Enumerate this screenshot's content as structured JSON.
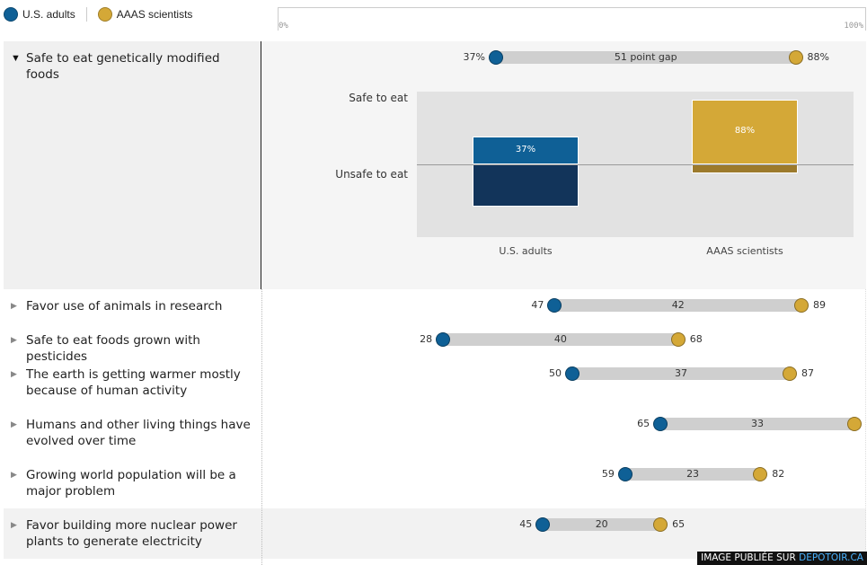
{
  "legend": {
    "items": [
      {
        "label": "U.S. adults",
        "color": "#0f6096"
      },
      {
        "label": "AAAS scientists",
        "color": "#d4a837"
      }
    ]
  },
  "scale": {
    "min_label": "0%",
    "max_label": "100%"
  },
  "colors": {
    "us_adults": "#0f6096",
    "us_adults_dark": "#12345a",
    "scientists": "#d4a837",
    "scientists_dark": "#9c7a2c",
    "gap_bar": "#cfcfcf"
  },
  "chart_data": [
    {
      "type": "dumbbell",
      "series": [
        {
          "name": "U.S. adults"
        },
        {
          "name": "AAAS scientists"
        }
      ],
      "xlim": [
        0,
        100
      ],
      "rows": [
        {
          "label": "Safe to eat genetically modified foods",
          "us": 37,
          "aaas": 88,
          "gap_label": "51 point gap",
          "us_label": "37%",
          "aaas_label": "88%",
          "expanded": true
        },
        {
          "label": "Favor use of animals in research",
          "us": 47,
          "aaas": 89,
          "gap_label": "42",
          "us_label": "47",
          "aaas_label": "89"
        },
        {
          "label": "Safe to eat foods grown with pesticides",
          "us": 28,
          "aaas": 68,
          "gap_label": "40",
          "us_label": "28",
          "aaas_label": "68"
        },
        {
          "label": "The earth is getting warmer mostly because of human activity",
          "us": 50,
          "aaas": 87,
          "gap_label": "37",
          "us_label": "50",
          "aaas_label": "87"
        },
        {
          "label": "Humans and other living things have evolved over time",
          "us": 65,
          "aaas": 98,
          "gap_label": "33",
          "us_label": "65",
          "aaas_label": ""
        },
        {
          "label": "Growing world population will be a major problem",
          "us": 59,
          "aaas": 82,
          "gap_label": "23",
          "us_label": "59",
          "aaas_label": "82"
        },
        {
          "label": "Favor building more nuclear power plants to generate electricity",
          "us": 45,
          "aaas": 65,
          "gap_label": "20",
          "us_label": "45",
          "aaas_label": "65"
        }
      ]
    },
    {
      "type": "bar",
      "categories": [
        "U.S. adults",
        "AAAS scientists"
      ],
      "y_labels": {
        "top": "Safe to eat",
        "bottom": "Unsafe to eat"
      },
      "safe": [
        37,
        88
      ],
      "unsafe": [
        57,
        11
      ],
      "safe_labels": [
        "37%",
        "88%"
      ]
    }
  ],
  "watermark": {
    "prefix": "IMAGE PUBLIÉE SUR ",
    "site": "DEPOTOIR.CA"
  }
}
